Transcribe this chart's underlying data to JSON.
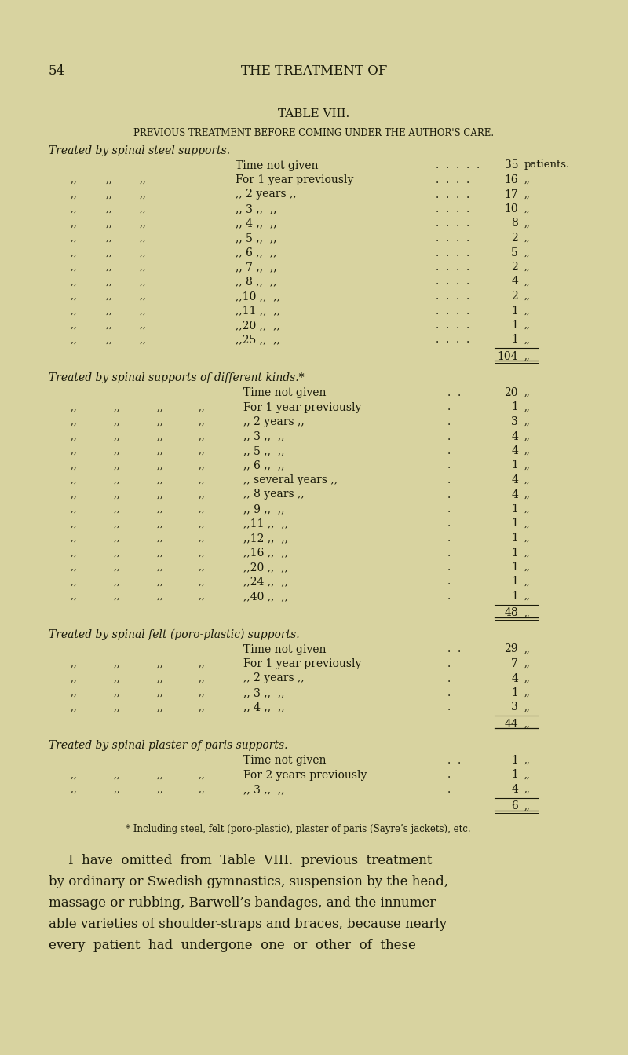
{
  "bg_color": "#d8d3a0",
  "text_color": "#1a1a0a",
  "page_num": "54",
  "header": "THE TREATMENT OF",
  "table_title": "TABLE VIII.",
  "table_subtitle": "PREVIOUS TREATMENT BEFORE COMING UNDER THE AUTHOR'S CARE.",
  "section1_header": "Treated by spinal steel supports.",
  "section1_total": "104",
  "section2_header": "Treated by spinal supports of different kinds.*",
  "section2_total": "48",
  "section3_header": "Treated by spinal felt (poro-plastic) supports.",
  "section3_total": "44",
  "section4_header": "Treated by spinal plaster-of-paris supports.",
  "section4_total": "6",
  "footnote": "* Including steel, felt (poro-plastic), plaster of paris (Sayre’s jackets), etc.",
  "para_lines": [
    "I  have  omitted  from  Table  VIII.  previous  treatment",
    "by ordinary or Swedish gymnastics, suspension by the head,",
    "massage or rubbing, Barwell’s bandages, and the innumer-",
    "able varieties of shoulder-straps and braces, because nearly",
    "every  patient  had  undergone  one  or  other  of  these"
  ]
}
